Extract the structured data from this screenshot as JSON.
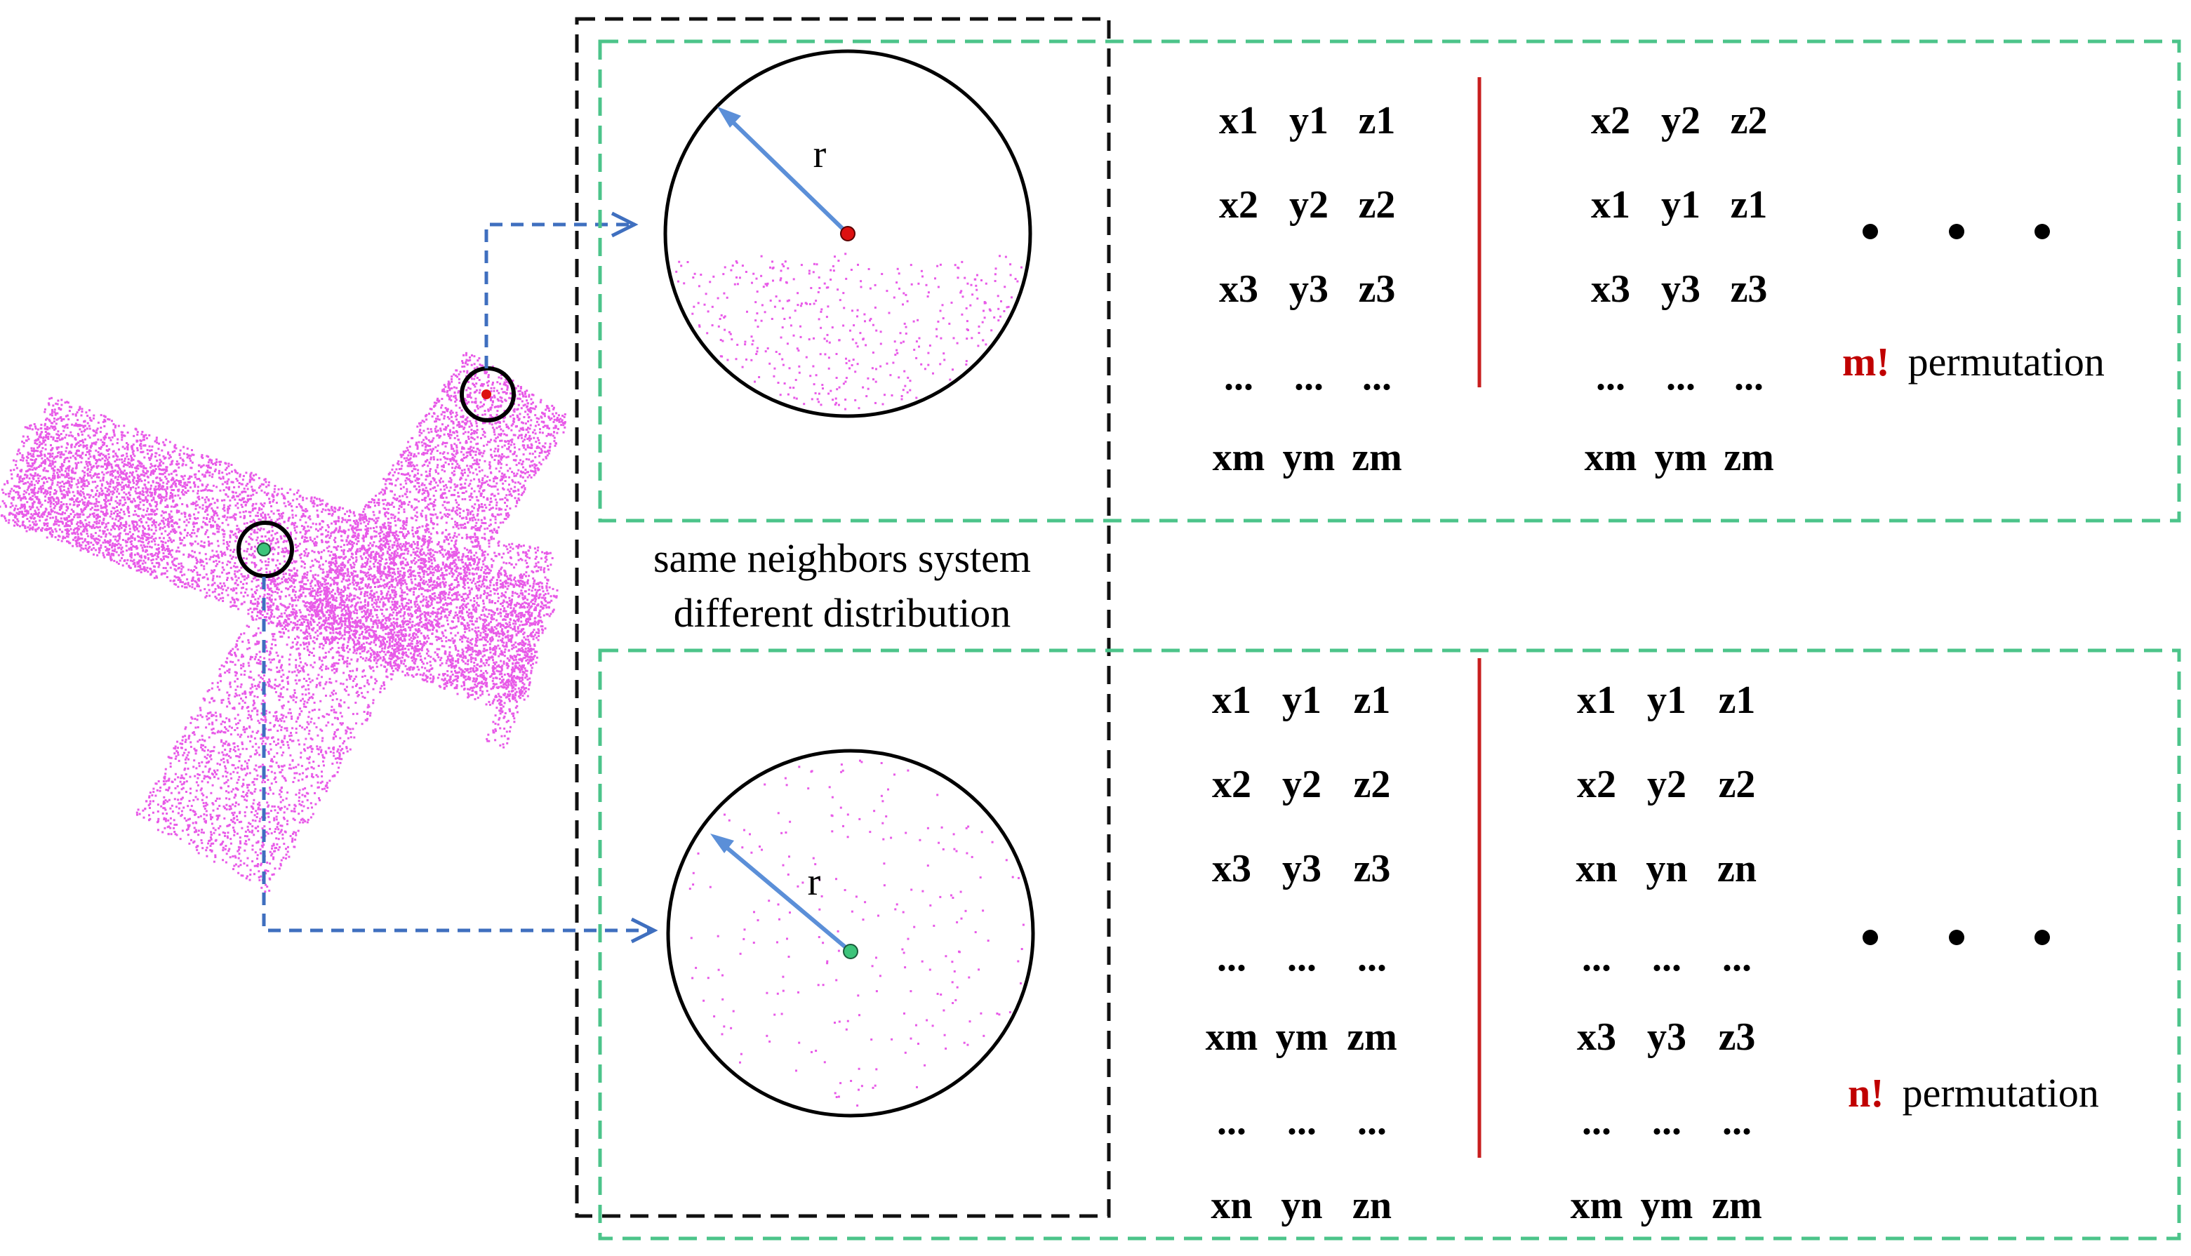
{
  "colors": {
    "point_cloud": "#e85ae8",
    "green_box": "#4cc48a",
    "black_box": "#111111",
    "arrow_dashed": "#3f6fbf",
    "radius_arrow": "#5b8fd8",
    "red_point": "#dd1111",
    "green_point": "#3cc47a",
    "divider": "#c81e1e",
    "factorial": "#c00000"
  },
  "caption": {
    "line1": "same neighbors system",
    "line2": "different distribution"
  },
  "top_panel": {
    "radius_label": "r",
    "left_rows": [
      [
        "x1",
        "y1",
        "z1"
      ],
      [
        "x2",
        "y2",
        "z2"
      ],
      [
        "x3",
        "y3",
        "z3"
      ],
      [
        "...",
        "...",
        "..."
      ],
      [
        "xm",
        "ym",
        "zm"
      ]
    ],
    "right_rows": [
      [
        "x2",
        "y2",
        "z2"
      ],
      [
        "x1",
        "y1",
        "z1"
      ],
      [
        "x3",
        "y3",
        "z3"
      ],
      [
        "...",
        "...",
        "..."
      ],
      [
        "xm",
        "ym",
        "zm"
      ]
    ],
    "ellipsis": "• • •",
    "perm_factor": "m!",
    "perm_word": "permutation"
  },
  "bottom_panel": {
    "radius_label": "r",
    "left_rows": [
      [
        "x1",
        "y1",
        "z1"
      ],
      [
        "x2",
        "y2",
        "z2"
      ],
      [
        "x3",
        "y3",
        "z3"
      ],
      [
        "...",
        "...",
        "..."
      ],
      [
        "xm",
        "ym",
        "zm"
      ],
      [
        "...",
        "...",
        "..."
      ],
      [
        "xn",
        "yn",
        "zn"
      ]
    ],
    "right_rows": [
      [
        "x1",
        "y1",
        "z1"
      ],
      [
        "x2",
        "y2",
        "z2"
      ],
      [
        "xn",
        "yn",
        "zn"
      ],
      [
        "...",
        "...",
        "..."
      ],
      [
        "x3",
        "y3",
        "z3"
      ],
      [
        "...",
        "...",
        "..."
      ],
      [
        "xm",
        "ym",
        "zm"
      ]
    ],
    "ellipsis": "• • •",
    "perm_factor": "n!",
    "perm_word": "permutation"
  }
}
